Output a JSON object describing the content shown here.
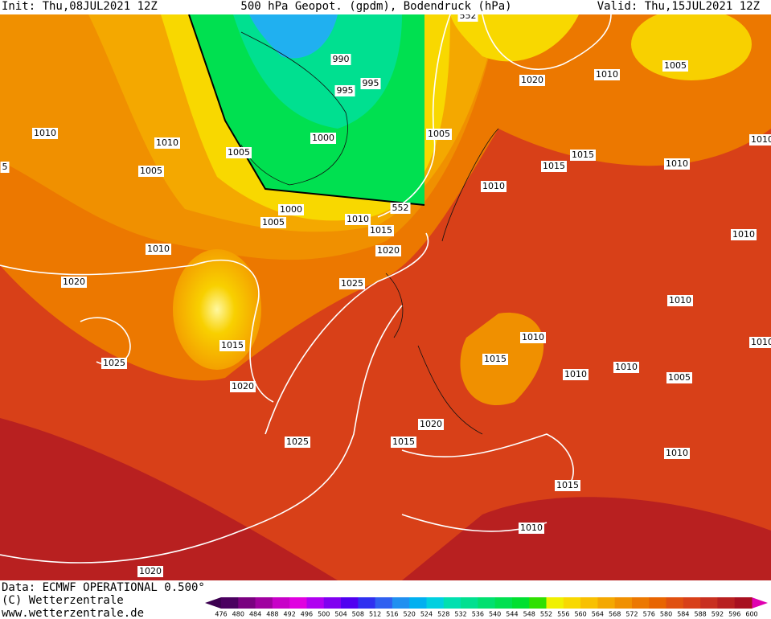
{
  "header": {
    "init": "Init: Thu,08JUL2021  12Z",
    "title": "500 hPa Geopot. (gpdm), Bodendruck (hPa)",
    "valid": "Valid: Thu,15JUL2021  12Z"
  },
  "isobar_labels": [
    "990",
    "995",
    "995",
    "1000",
    "1005",
    "1005",
    "1005",
    "1000",
    "1010",
    "1015",
    "1020",
    "1025",
    "1010",
    "1010",
    "1010",
    "1020",
    "1025",
    "1015",
    "1020",
    "1025",
    "1020",
    "1015",
    "1005",
    "1020",
    "1010",
    "1005",
    "1015",
    "1015",
    "1010",
    "1010",
    "1010",
    "1010",
    "1010",
    "1015",
    "1010",
    "1010",
    "1005",
    "1010",
    "1015",
    "1010",
    "1020",
    "552",
    "552",
    "5",
    "1010",
    "1010"
  ],
  "colorbar": {
    "ticks": [
      476,
      480,
      484,
      488,
      492,
      496,
      500,
      504,
      508,
      512,
      516,
      520,
      524,
      528,
      532,
      536,
      540,
      544,
      548,
      552,
      556,
      560,
      564,
      568,
      572,
      576,
      580,
      584,
      588,
      592,
      596,
      600
    ],
    "colors": [
      "#4b0060",
      "#7a0080",
      "#a000a0",
      "#c800c8",
      "#e000e0",
      "#b000f0",
      "#8000f0",
      "#5000f0",
      "#3030f0",
      "#3060f0",
      "#2090f0",
      "#00b0f0",
      "#00d0e0",
      "#00e0b0",
      "#00e090",
      "#00e070",
      "#00e050",
      "#00e030",
      "#30e000",
      "#f0f000",
      "#f8d800",
      "#f8c000",
      "#f4a800",
      "#f09000",
      "#ec7800",
      "#e86400",
      "#e05010",
      "#d84018",
      "#c83020",
      "#b82020",
      "#a81020"
    ],
    "low_color": "#3c0050",
    "high_color": "#e000b0"
  },
  "footer": {
    "data": "Data: ECMWF OPERATIONAL 0.500°",
    "copyright": "(C) Wetterzentrale",
    "url": "www.wetterzentrale.de"
  }
}
